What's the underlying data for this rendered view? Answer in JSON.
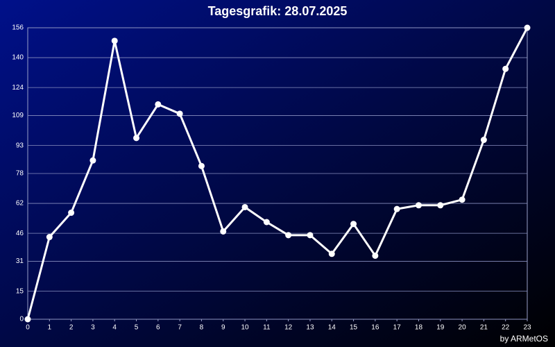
{
  "chart_data": {
    "type": "line",
    "title": "Tagesgrafik: 28.07.2025",
    "footer": "by ARMetOS",
    "x": [
      0,
      1,
      2,
      3,
      4,
      5,
      6,
      7,
      8,
      9,
      10,
      11,
      12,
      13,
      14,
      15,
      16,
      17,
      18,
      19,
      20,
      21,
      22,
      23
    ],
    "series": [
      {
        "color": "#ffffff",
        "values": [
          0,
          44,
          57,
          85,
          149,
          97,
          115,
          110,
          82,
          47,
          60,
          52,
          45,
          45,
          35,
          51,
          34,
          59,
          61,
          61,
          64,
          96,
          134,
          156
        ]
      }
    ],
    "xlim": [
      0,
      23
    ],
    "xticks": [
      0,
      1,
      2,
      3,
      4,
      5,
      6,
      7,
      8,
      9,
      10,
      11,
      12,
      13,
      14,
      15,
      16,
      17,
      18,
      19,
      20,
      21,
      22,
      23
    ],
    "ylim": [
      0,
      156
    ],
    "yticks": [
      0,
      15,
      31,
      46,
      62,
      78,
      93,
      109,
      124,
      140,
      156
    ],
    "grid": true
  }
}
